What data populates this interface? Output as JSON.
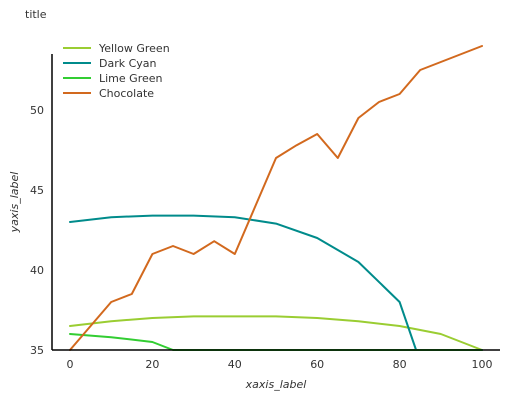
{
  "chart_data": {
    "type": "line",
    "title": "title",
    "xlabel": "xaxis_label",
    "ylabel": "yaxis_label",
    "xlim": [
      0,
      100
    ],
    "ylim": [
      35,
      54
    ],
    "x_ticks": [
      "0",
      "20",
      "40",
      "60",
      "80",
      "100"
    ],
    "y_ticks": [
      "35",
      "40",
      "45",
      "50"
    ],
    "legend_position": "top-left",
    "grid": false,
    "series": [
      {
        "name": "Yellow Green",
        "color": "#9acd32",
        "x": [
          0,
          10,
          20,
          30,
          40,
          50,
          60,
          70,
          80,
          90,
          100
        ],
        "y": [
          36.5,
          36.8,
          37.0,
          37.1,
          37.1,
          37.1,
          37.0,
          36.8,
          36.5,
          36.0,
          35.0
        ]
      },
      {
        "name": "Dark Cyan",
        "color": "#008b8b",
        "x": [
          0,
          10,
          20,
          30,
          40,
          50,
          60,
          70,
          80,
          84,
          90,
          100
        ],
        "y": [
          43.0,
          43.3,
          43.4,
          43.4,
          43.3,
          42.9,
          42.0,
          40.5,
          38.0,
          35.0,
          35.0,
          35.0
        ]
      },
      {
        "name": "Lime Green",
        "color": "#32cd32",
        "x": [
          0,
          10,
          20,
          25,
          30,
          40,
          50,
          60,
          70,
          80,
          90,
          100
        ],
        "y": [
          36.0,
          35.8,
          35.5,
          35.0,
          35.0,
          35.0,
          35.0,
          35.0,
          35.0,
          35.0,
          35.0,
          35.0
        ]
      },
      {
        "name": "Chocolate",
        "color": "#d2691e",
        "x": [
          0,
          10,
          15,
          20,
          25,
          30,
          35,
          40,
          45,
          50,
          55,
          60,
          65,
          70,
          75,
          80,
          85,
          90,
          100
        ],
        "y": [
          35.0,
          38.0,
          38.5,
          41.0,
          41.5,
          41.0,
          41.8,
          41.0,
          44.0,
          47.0,
          47.8,
          48.5,
          47.0,
          49.5,
          50.5,
          51.0,
          52.5,
          53.0,
          54.0
        ]
      }
    ]
  }
}
